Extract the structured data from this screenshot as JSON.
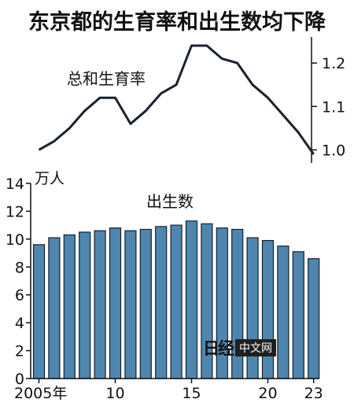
{
  "title": "东京都的生育率和出生数均下降",
  "chart_data": [
    {
      "type": "line",
      "label": "总和生育率",
      "x": [
        2005,
        2006,
        2007,
        2008,
        2009,
        2010,
        2011,
        2012,
        2013,
        2014,
        2015,
        2016,
        2017,
        2018,
        2019,
        2020,
        2021,
        2022,
        2023
      ],
      "values": [
        1.0,
        1.02,
        1.05,
        1.09,
        1.12,
        1.12,
        1.06,
        1.09,
        1.13,
        1.15,
        1.24,
        1.24,
        1.21,
        1.2,
        1.15,
        1.12,
        1.08,
        1.04,
        0.99
      ],
      "yticks": [
        "1.0",
        "1.1",
        "1.2"
      ],
      "ylim": [
        0.97,
        1.26
      ],
      "axis_position": "right"
    },
    {
      "type": "bar",
      "label": "出生数",
      "unit": "万人",
      "x": [
        2005,
        2006,
        2007,
        2008,
        2009,
        2010,
        2011,
        2012,
        2013,
        2014,
        2015,
        2016,
        2017,
        2018,
        2019,
        2020,
        2021,
        2022,
        2023
      ],
      "values": [
        9.6,
        10.1,
        10.3,
        10.5,
        10.6,
        10.8,
        10.6,
        10.7,
        10.9,
        11.0,
        11.3,
        11.1,
        10.8,
        10.7,
        10.1,
        9.9,
        9.5,
        9.1,
        8.6
      ],
      "yticks": [
        "0",
        "2",
        "4",
        "6",
        "8",
        "10",
        "12",
        "14"
      ],
      "ylim": [
        0,
        14
      ],
      "xticks": [
        {
          "year": 2005,
          "label": "2005年"
        },
        {
          "year": 2010,
          "label": "10"
        },
        {
          "year": 2015,
          "label": "15"
        },
        {
          "year": 2020,
          "label": "20"
        },
        {
          "year": 2023,
          "label": "23"
        }
      ],
      "bar_color": "#4f86b0"
    }
  ],
  "watermark": {
    "logo": "日经",
    "text": "中文网"
  }
}
